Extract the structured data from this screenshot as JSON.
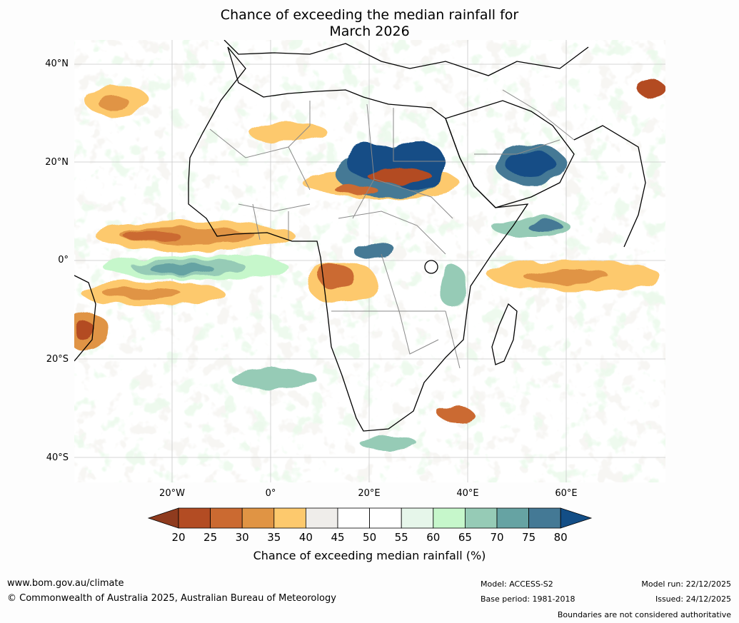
{
  "title_line1": "Chance of exceeding the median rainfall for",
  "title_line2": "March 2026",
  "map": {
    "lat_labels": [
      "40°N",
      "20°N",
      "0°",
      "20°S",
      "40°S"
    ],
    "lon_labels": [
      "20°W",
      "0°",
      "20°E",
      "40°E",
      "60°E"
    ],
    "colors": {
      "land_outline": "#000000",
      "country_borders": "#8a8a8a",
      "graticule": "#cccccc"
    }
  },
  "colorbar": {
    "title": "Chance of exceeding median rainfall (%)",
    "ticks": [
      "20",
      "25",
      "30",
      "35",
      "40",
      "45",
      "50",
      "55",
      "60",
      "65",
      "70",
      "75",
      "80"
    ],
    "colors": [
      "#8f3b1e",
      "#b34c23",
      "#cb6a31",
      "#e09444",
      "#fdc96d",
      "#efedea",
      "#ffffff",
      "#ffffff",
      "#e6f6ea",
      "#c6f7cb",
      "#96cbb6",
      "#66a3a3",
      "#447995",
      "#134e86"
    ]
  },
  "footer": {
    "website": "www.bom.gov.au/climate",
    "copyright": "© Commonwealth of Australia 2025, Australian Bureau of Meteorology",
    "model": "Model: ACCESS-S2",
    "base_period": "Base period: 1981-2018",
    "model_run": "Model run: 22/12/2025",
    "issued": "Issued: 24/12/2025",
    "disclaimer": "Boundaries are not considered authoritative"
  }
}
